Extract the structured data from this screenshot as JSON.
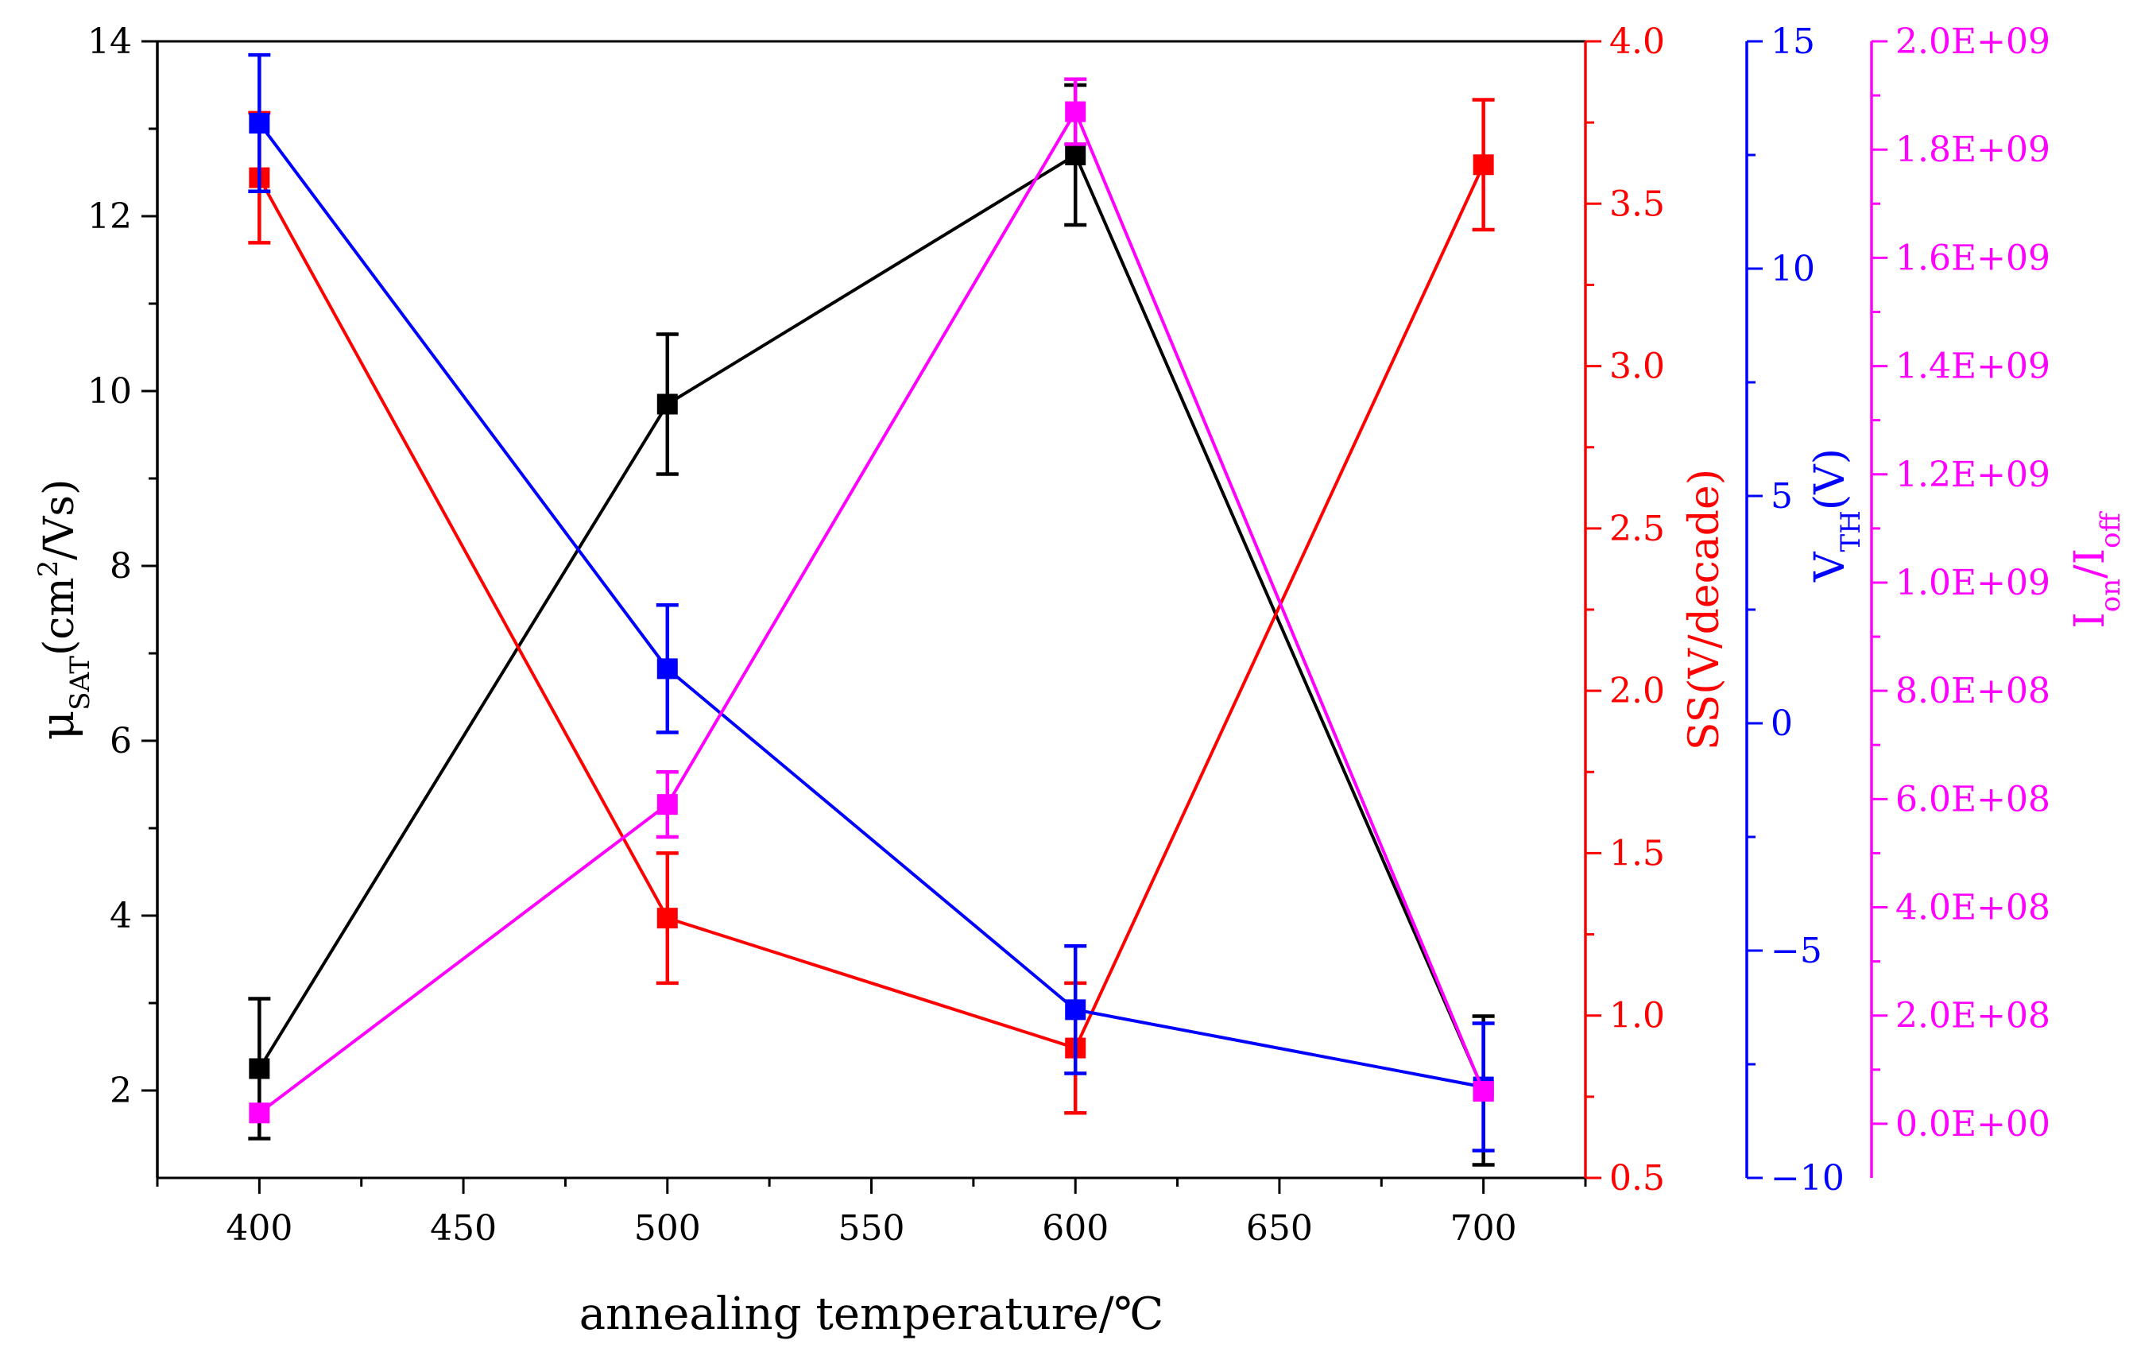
{
  "chart_data": {
    "type": "line",
    "xlabel": "annealing temperature/℃",
    "x_axis": {
      "range": [
        375,
        725
      ],
      "major_ticks": [
        400,
        450,
        500,
        550,
        600,
        650,
        700
      ],
      "tick_labels": [
        "400",
        "450",
        "500",
        "550",
        "600",
        "650",
        "700"
      ]
    },
    "x": [
      400,
      500,
      600,
      700
    ],
    "axes": [
      {
        "id": "mu",
        "side": "left",
        "color": "#000000",
        "label": {
          "main": "μ",
          "sub": "SAT",
          "rest": "(cm",
          "sup": "2",
          "end": "/Vs)"
        },
        "range": [
          1,
          14
        ],
        "tick_labels": [
          "2",
          "4",
          "6",
          "8",
          "10",
          "12",
          "14"
        ],
        "tick_values": [
          2,
          4,
          6,
          8,
          10,
          12,
          14
        ]
      },
      {
        "id": "ss",
        "side": "right-1",
        "color": "#ff0000",
        "label": {
          "main": "SS(V/decade)"
        },
        "range": [
          0.5,
          4.0
        ],
        "tick_labels": [
          "0.5",
          "1.0",
          "1.5",
          "2.0",
          "2.5",
          "3.0",
          "3.5",
          "4.0"
        ],
        "tick_values": [
          0.5,
          1.0,
          1.5,
          2.0,
          2.5,
          3.0,
          3.5,
          4.0
        ]
      },
      {
        "id": "vth",
        "side": "right-2",
        "color": "#0000ff",
        "label": {
          "main": "V",
          "sub": "TH",
          "rest": "(V)"
        },
        "range": [
          -10,
          15
        ],
        "tick_labels": [
          "−10",
          "−5",
          "0",
          "5",
          "10",
          "15"
        ],
        "tick_values": [
          -10,
          -5,
          0,
          5,
          10,
          15
        ]
      },
      {
        "id": "ratio",
        "side": "right-3",
        "color": "#ff00ff",
        "label": {
          "main": "I",
          "sub": "on",
          "rest": "/I",
          "sub2": "off"
        },
        "range": [
          -100000000,
          2000000000
        ],
        "tick_labels": [
          "0.0E+00",
          "2.0E+08",
          "4.0E+08",
          "6.0E+08",
          "8.0E+08",
          "1.0E+09",
          "1.2E+09",
          "1.4E+09",
          "1.6E+09",
          "1.8E+09",
          "2.0E+09"
        ],
        "tick_values": [
          0,
          200000000,
          400000000,
          600000000,
          800000000,
          1000000000,
          1200000000,
          1400000000,
          1600000000,
          1800000000,
          2000000000
        ]
      }
    ],
    "series": [
      {
        "name": "mu_SAT",
        "axis": "mu",
        "color": "#000000",
        "values": [
          2.25,
          9.85,
          12.7,
          2.0
        ],
        "errors": [
          0.8,
          0.8,
          0.8,
          0.85
        ]
      },
      {
        "name": "SS",
        "axis": "ss",
        "color": "#ff0000",
        "values": [
          3.58,
          1.3,
          0.9,
          3.62
        ],
        "errors": [
          0.2,
          0.2,
          0.2,
          0.2
        ]
      },
      {
        "name": "V_TH",
        "axis": "vth",
        "color": "#0000ff",
        "values": [
          13.2,
          1.2,
          -6.3,
          -8.0
        ],
        "errors": [
          1.5,
          1.4,
          1.4,
          1.4
        ]
      },
      {
        "name": "Ion/Ioff",
        "axis": "ratio",
        "color": "#ff00ff",
        "values": [
          20000000,
          590000000,
          1870000000,
          60000000
        ],
        "errors": [
          0,
          60000000,
          60000000,
          0
        ]
      }
    ]
  }
}
